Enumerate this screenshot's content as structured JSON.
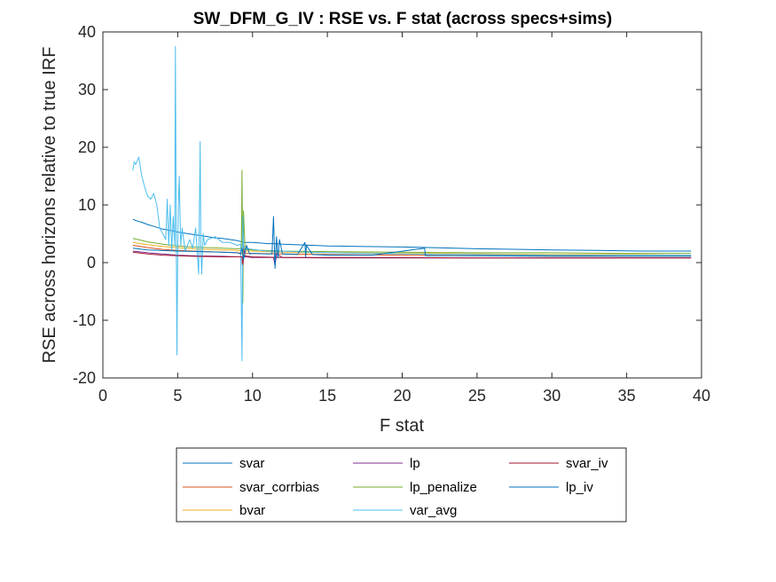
{
  "chart_data": {
    "type": "line",
    "title": "SW_DFM_G_IV : RSE vs. F stat (across specs+sims)",
    "xlabel": "F stat",
    "ylabel": "RSE across horizons relative to true IRF",
    "xlim": [
      0,
      40
    ],
    "ylim": [
      -20,
      40
    ],
    "xticks": [
      0,
      5,
      10,
      15,
      20,
      25,
      30,
      35,
      40
    ],
    "yticks": [
      -20,
      -10,
      0,
      10,
      20,
      30,
      40
    ],
    "grid": false,
    "legend_position": "bottom-outside",
    "series": [
      {
        "name": "svar",
        "color": "#0072BD",
        "x": [
          2.0,
          2.3,
          2.6,
          3.0,
          3.5,
          4.0,
          4.5,
          5.0,
          5.5,
          6.0,
          6.5,
          7.0,
          7.5,
          8.0,
          8.5,
          9.0,
          9.3,
          9.5,
          10.0,
          10.5,
          11.0,
          11.5,
          12.0,
          13.0,
          14.0,
          15.0,
          17.0,
          20.0,
          22.0,
          25.0,
          28.0,
          30.0,
          33.0,
          36.0,
          39.3
        ],
        "values": [
          7.5,
          7.2,
          7.0,
          6.6,
          6.2,
          5.8,
          5.6,
          5.3,
          5.1,
          4.9,
          4.7,
          4.5,
          4.3,
          4.2,
          4.0,
          3.8,
          3.6,
          3.5,
          3.5,
          3.4,
          3.3,
          3.3,
          3.2,
          3.1,
          3.0,
          2.9,
          2.8,
          2.7,
          2.6,
          2.4,
          2.3,
          2.2,
          2.1,
          2.0,
          2.0
        ]
      },
      {
        "name": "svar_corrbias",
        "color": "#D95319",
        "x": [
          2.0,
          2.5,
          3.0,
          4.0,
          5.0,
          6.0,
          7.0,
          8.0,
          9.0,
          9.3,
          9.4,
          9.6,
          10.0,
          12.0,
          15.0,
          20.0,
          25.0,
          30.0,
          35.0,
          39.3
        ],
        "values": [
          3.0,
          2.8,
          2.6,
          2.3,
          2.1,
          2.0,
          1.9,
          1.8,
          1.7,
          1.6,
          1.6,
          1.6,
          1.6,
          1.5,
          1.4,
          1.3,
          1.2,
          1.2,
          1.1,
          1.1
        ]
      },
      {
        "name": "bvar",
        "color": "#EDB120",
        "x": [
          2.0,
          2.5,
          3.0,
          4.0,
          5.0,
          6.0,
          7.0,
          8.0,
          9.0,
          9.3,
          9.4,
          10.0,
          12.0,
          15.0,
          20.0,
          25.0,
          30.0,
          35.0,
          39.3
        ],
        "values": [
          3.5,
          3.3,
          3.1,
          2.8,
          2.6,
          2.4,
          2.3,
          2.2,
          2.1,
          2.0,
          2.0,
          2.0,
          1.8,
          1.7,
          1.6,
          1.5,
          1.4,
          1.4,
          1.3
        ]
      },
      {
        "name": "lp",
        "color": "#7E2F8E",
        "x": [
          2.0,
          3.0,
          4.0,
          5.0,
          6.0,
          8.0,
          9.0,
          9.3,
          9.35,
          9.4,
          9.5,
          10.0,
          11.0,
          11.4,
          11.5,
          11.6,
          12.0,
          15.0,
          20.0,
          25.0,
          30.0,
          35.0,
          39.3
        ],
        "values": [
          2.0,
          1.7,
          1.5,
          1.3,
          1.2,
          1.1,
          1.0,
          1.0,
          -2.0,
          3.0,
          1.0,
          0.9,
          0.9,
          0.9,
          -0.5,
          1.5,
          0.9,
          0.8,
          0.8,
          0.8,
          0.8,
          0.8,
          0.8
        ]
      },
      {
        "name": "lp_penalize",
        "color": "#77AC30",
        "x": [
          2.0,
          2.5,
          3.0,
          4.0,
          5.0,
          6.0,
          7.0,
          8.0,
          9.0,
          9.25,
          9.3,
          9.35,
          9.4,
          9.5,
          10.0,
          12.0,
          15.0,
          20.0,
          25.0,
          30.0,
          35.0,
          39.3
        ],
        "values": [
          4.2,
          3.9,
          3.6,
          3.2,
          2.9,
          2.7,
          2.6,
          2.5,
          2.4,
          2.4,
          16.0,
          -7.0,
          9.0,
          2.3,
          2.2,
          2.0,
          1.9,
          1.8,
          1.7,
          1.7,
          1.6,
          1.6
        ]
      },
      {
        "name": "var_avg",
        "color": "#4DBEEE",
        "x": [
          2.0,
          2.1,
          2.2,
          2.4,
          2.6,
          2.8,
          3.0,
          3.2,
          3.4,
          3.6,
          3.8,
          4.0,
          4.2,
          4.3,
          4.4,
          4.5,
          4.6,
          4.7,
          4.8,
          4.85,
          4.9,
          4.95,
          5.0,
          5.05,
          5.1,
          5.2,
          5.3,
          5.5,
          5.8,
          6.0,
          6.2,
          6.4,
          6.5,
          6.55,
          6.6,
          6.7,
          6.8,
          7.0,
          7.5,
          8.0,
          8.5,
          9.0,
          9.2,
          9.3,
          9.35,
          9.4,
          9.5,
          10.0,
          11.0,
          12.0,
          15.0,
          20.0,
          25.0,
          30.0,
          35.0,
          39.3
        ],
        "values": [
          16.0,
          17.5,
          17.0,
          18.3,
          15.0,
          13.0,
          11.5,
          11.0,
          12.0,
          10.0,
          6.0,
          5.0,
          4.0,
          11.0,
          3.0,
          10.0,
          2.0,
          8.0,
          3.0,
          37.5,
          5.0,
          -16.0,
          2.0,
          10.0,
          15.0,
          3.0,
          6.0,
          2.0,
          4.0,
          2.5,
          6.0,
          -2.0,
          21.0,
          3.0,
          -2.0,
          5.0,
          3.0,
          4.0,
          4.5,
          3.5,
          3.5,
          3.0,
          3.2,
          -17.0,
          8.0,
          2.5,
          2.5,
          2.3,
          2.0,
          2.0,
          1.7,
          1.5,
          1.4,
          1.3,
          1.3,
          1.3
        ]
      },
      {
        "name": "svar_iv",
        "color": "#A2142F",
        "x": [
          2.0,
          3.0,
          4.0,
          5.0,
          6.0,
          8.0,
          9.0,
          9.3,
          9.35,
          9.4,
          10.0,
          12.0,
          15.0,
          20.0,
          25.0,
          30.0,
          35.0,
          39.3
        ],
        "values": [
          1.8,
          1.5,
          1.3,
          1.2,
          1.1,
          1.0,
          1.0,
          1.0,
          -0.3,
          1.2,
          1.0,
          0.9,
          0.9,
          0.9,
          0.8,
          0.8,
          0.8,
          0.8
        ]
      },
      {
        "name": "lp_iv",
        "color": "#0072BD",
        "x": [
          2.0,
          3.0,
          5.0,
          8.0,
          9.0,
          9.2,
          9.3,
          9.4,
          9.6,
          9.8,
          10.0,
          11.0,
          11.3,
          11.4,
          11.5,
          11.6,
          11.7,
          11.8,
          12.0,
          13.0,
          13.5,
          13.55,
          13.6,
          14.0,
          15.0,
          18.0,
          21.5,
          21.55,
          22.0,
          25.0,
          30.0,
          35.0,
          39.3
        ],
        "values": [
          2.5,
          2.2,
          2.0,
          1.8,
          1.7,
          1.5,
          2.5,
          0.5,
          3.0,
          1.5,
          1.6,
          1.5,
          1.5,
          8.0,
          -1.0,
          4.5,
          0.8,
          4.0,
          1.5,
          1.4,
          3.5,
          1.0,
          3.0,
          1.4,
          1.3,
          1.3,
          2.5,
          1.2,
          1.2,
          1.2,
          1.1,
          1.1,
          1.1
        ]
      }
    ]
  },
  "legend": {
    "columns": [
      [
        "svar",
        "svar_corrbias",
        "bvar"
      ],
      [
        "lp",
        "lp_penalize",
        "var_avg"
      ],
      [
        "svar_iv",
        "lp_iv"
      ]
    ]
  }
}
